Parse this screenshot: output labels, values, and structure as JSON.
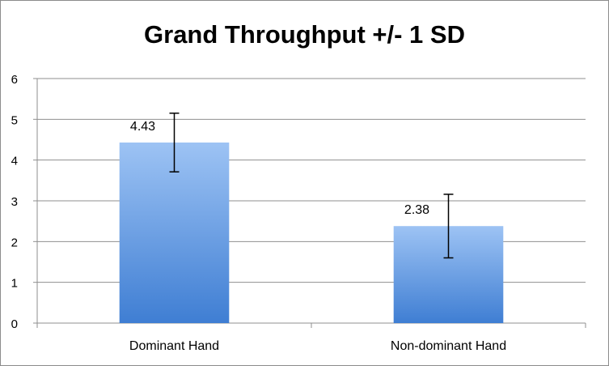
{
  "chart_data": {
    "type": "bar",
    "title": "Grand Throughput +/- 1 SD",
    "categories": [
      "Dominant Hand",
      "Non-dominant Hand"
    ],
    "values": [
      4.43,
      2.38
    ],
    "data_labels": [
      "4.43",
      "2.38"
    ],
    "error_low": [
      3.71,
      1.6
    ],
    "error_high": [
      5.15,
      3.16
    ],
    "ylim": [
      0,
      6
    ],
    "yticks": [
      0,
      1,
      2,
      3,
      4,
      5,
      6
    ],
    "grid": true,
    "legend": "none",
    "bar_color_top": "#9dc3f4",
    "bar_color_bottom": "#3f7ed3"
  }
}
